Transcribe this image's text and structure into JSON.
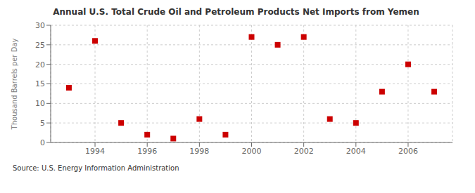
{
  "chart_data": {
    "type": "scatter",
    "title": "Annual U.S. Total Crude Oil and Petroleum Products Net Imports from Yemen",
    "ylabel": "Thousand Barrels per Day",
    "source": "Source: U.S. Energy Information Administration",
    "x": [
      1993,
      1994,
      1995,
      1996,
      1997,
      1998,
      1999,
      2000,
      2001,
      2002,
      2003,
      2004,
      2005,
      2006,
      2007
    ],
    "values": [
      14,
      26,
      5,
      2,
      1,
      6,
      2,
      27,
      25,
      27,
      6,
      5,
      13,
      20,
      13
    ],
    "xlim": [
      1992.3,
      2007.7
    ],
    "ylim": [
      0,
      30
    ],
    "xticks": [
      1994,
      1996,
      1998,
      2000,
      2002,
      2004,
      2006
    ],
    "yticks": [
      0,
      5,
      10,
      15,
      20,
      25,
      30
    ],
    "grid": true,
    "color": "#cc0000",
    "marker": "square"
  }
}
